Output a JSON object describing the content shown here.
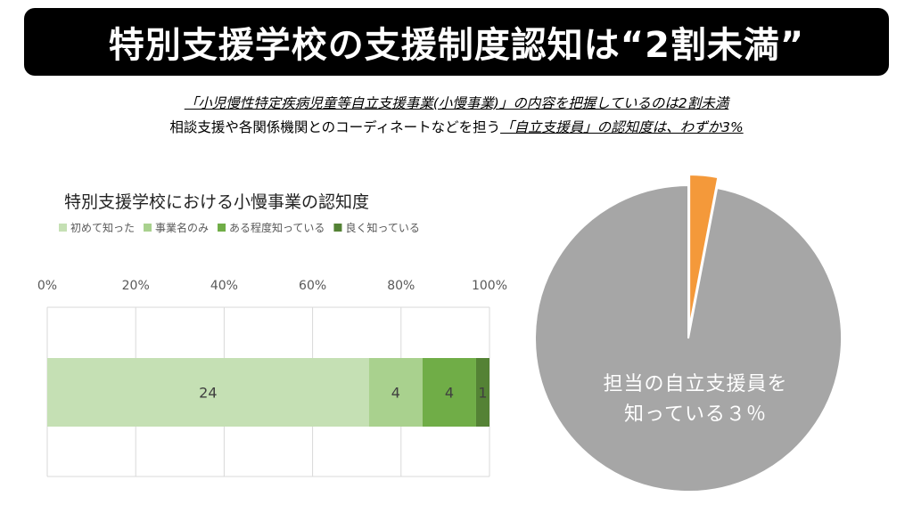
{
  "header": {
    "title": "特別支援学校の支援制度認知は“2割未満”"
  },
  "subtitle": {
    "line1": "「小児慢性特定疾病児童等自立支援事業(小慢事業)」の内容を把握しているのは2割未満",
    "line2_plain": "相談支援や各関係機関とのコーディネートなどを担う",
    "line2_emph": "「自立支援員」の認知度は、わずか3%"
  },
  "chart_data": [
    {
      "type": "bar",
      "subtype": "stacked-100-horizontal",
      "title": "特別支援学校における小慢事業の認知度",
      "legend_position": "top",
      "x_ticks": [
        "0%",
        "20%",
        "40%",
        "60%",
        "80%",
        "100%"
      ],
      "xlim": [
        0,
        100
      ],
      "grid": true,
      "categories": [
        ""
      ],
      "series": [
        {
          "name": "初めて知った",
          "values": [
            24
          ],
          "color": "#c5e0b4"
        },
        {
          "name": "事業名のみ",
          "values": [
            4
          ],
          "color": "#a9d18e"
        },
        {
          "name": "ある程度知っている",
          "values": [
            4
          ],
          "color": "#70ad47"
        },
        {
          "name": "良く知っている",
          "values": [
            1
          ],
          "color": "#548235"
        }
      ]
    },
    {
      "type": "pie",
      "slices": [
        {
          "value": 97,
          "color": "#a6a6a6"
        },
        {
          "value": 3,
          "color": "#f4993a"
        }
      ],
      "label_lines": [
        "担当の自立支援員を",
        "知っている３％"
      ]
    }
  ]
}
